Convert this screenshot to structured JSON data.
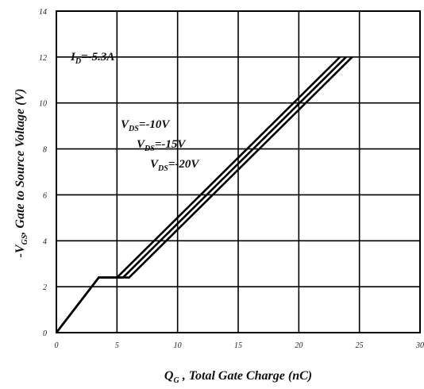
{
  "chart_data": {
    "type": "line",
    "title": "",
    "xlabel": {
      "main": "Q",
      "sub": "G",
      "rest": " , Total Gate Charge (nC)"
    },
    "ylabel": {
      "pre": "-V",
      "sub": "GS",
      "rest": ", Gate to Source Voltage (V)"
    },
    "xlim": [
      0,
      30
    ],
    "ylim": [
      0,
      14
    ],
    "xticks": [
      "0",
      "5",
      "10",
      "15",
      "20",
      "25",
      "30"
    ],
    "yticks": [
      "0",
      "2",
      "4",
      "6",
      "8",
      "10",
      "12",
      "14"
    ],
    "grid": true,
    "annotations": [
      {
        "text": "I",
        "sub": "D",
        "rest": "=-5.3A"
      },
      {
        "text": "V",
        "sub": "DS",
        "rest": "=-10V"
      },
      {
        "text": "V",
        "sub": "DS",
        "rest": "=-15V"
      },
      {
        "text": "V",
        "sub": "DS",
        "rest": "=-20V"
      }
    ],
    "series": [
      {
        "name": "V_DS=-10V",
        "x": [
          0,
          3.5,
          5.0,
          23.4
        ],
        "y": [
          0,
          2.4,
          2.4,
          12.0
        ]
      },
      {
        "name": "V_DS=-15V",
        "x": [
          0,
          3.5,
          5.5,
          23.9
        ],
        "y": [
          0,
          2.4,
          2.4,
          12.0
        ]
      },
      {
        "name": "V_DS=-20V",
        "x": [
          0,
          3.5,
          6.0,
          24.4
        ],
        "y": [
          0,
          2.4,
          2.4,
          12.0
        ]
      }
    ]
  }
}
